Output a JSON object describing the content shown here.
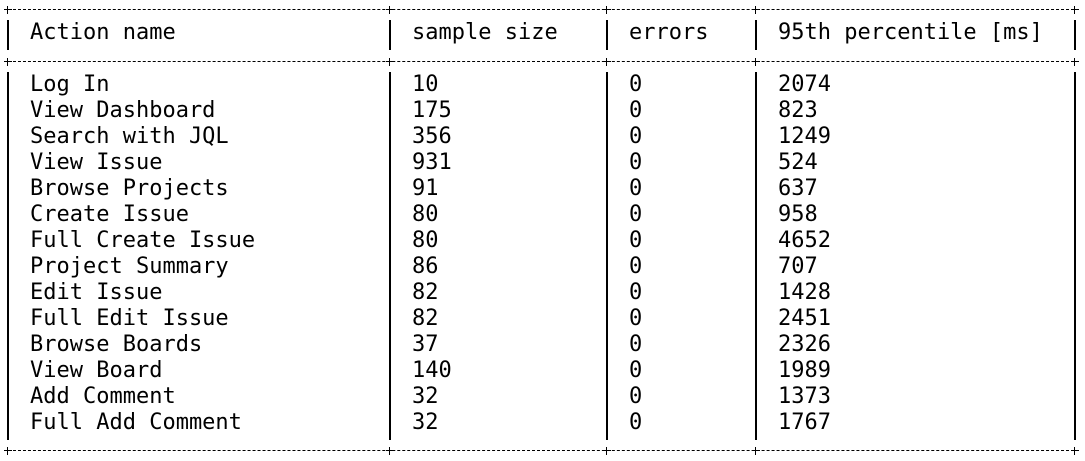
{
  "table": {
    "headers": [
      "Action name",
      "sample size",
      "errors",
      "95th percentile [ms]"
    ],
    "rows": [
      [
        "Log In",
        "10",
        "0",
        "2074"
      ],
      [
        "View Dashboard",
        "175",
        "0",
        "823"
      ],
      [
        "Search with JQL",
        "356",
        "0",
        "1249"
      ],
      [
        "View Issue",
        "931",
        "0",
        "524"
      ],
      [
        "Browse Projects",
        "91",
        "0",
        "637"
      ],
      [
        "Create Issue",
        "80",
        "0",
        "958"
      ],
      [
        "Full Create Issue",
        "80",
        "0",
        "4652"
      ],
      [
        "Project Summary",
        "86",
        "0",
        "707"
      ],
      [
        "Edit Issue",
        "82",
        "0",
        "1428"
      ],
      [
        "Full Edit Issue",
        "82",
        "0",
        "2451"
      ],
      [
        "Browse Boards",
        "37",
        "0",
        "2326"
      ],
      [
        "View Board",
        "140",
        "0",
        "1989"
      ],
      [
        "Add Comment",
        "32",
        "0",
        "1373"
      ],
      [
        "Full Add Comment",
        "32",
        "0",
        "1767"
      ]
    ]
  }
}
